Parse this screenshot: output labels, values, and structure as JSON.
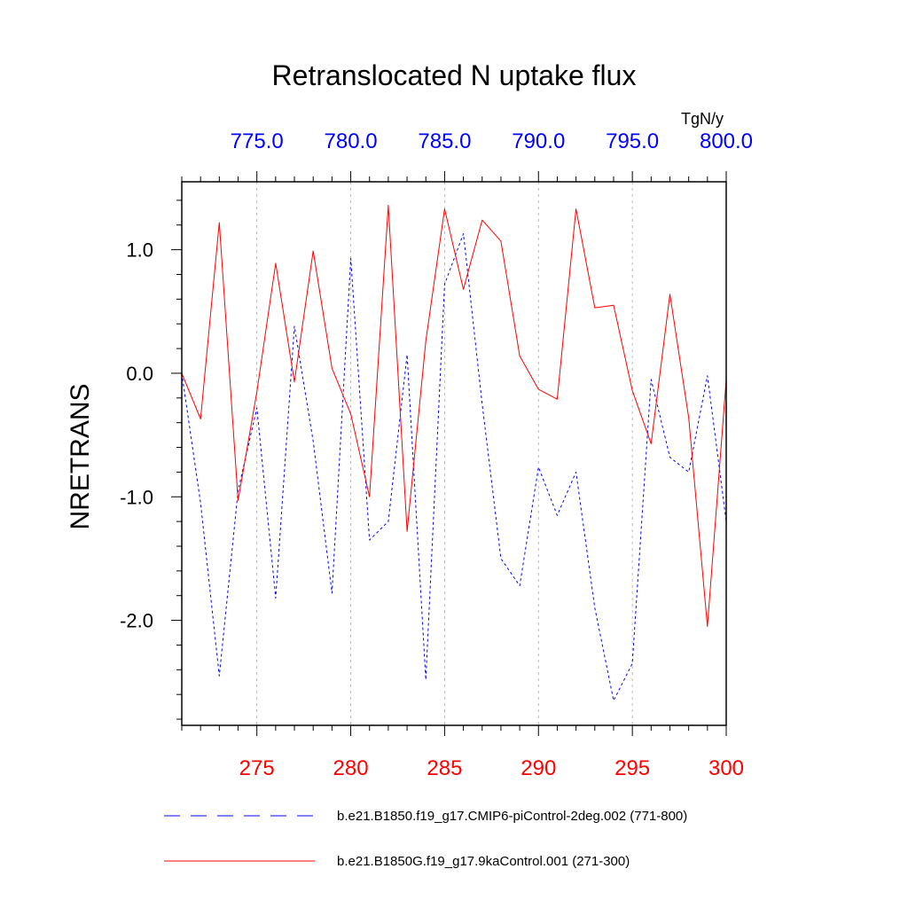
{
  "chart_data": {
    "type": "line",
    "title": "Retranslocated N uptake flux",
    "units": "TgN/y",
    "ylabel": "NRETRANS",
    "xlabel": "",
    "ylim": [
      -2.85,
      1.55
    ],
    "yticks": [
      1.0,
      0.0,
      -1.0,
      -2.0
    ],
    "ytick_labels": [
      "1.0",
      "0.0",
      "-1.0",
      "-2.0"
    ],
    "bottom_axis": {
      "range": [
        271,
        300
      ],
      "ticks": [
        275,
        280,
        285,
        290,
        295,
        300
      ],
      "tick_labels": [
        "275",
        "280",
        "285",
        "290",
        "295",
        "300"
      ],
      "color": "#ff0000"
    },
    "top_axis": {
      "range": [
        771,
        800
      ],
      "ticks": [
        775,
        780,
        785,
        790,
        795,
        800
      ],
      "tick_labels": [
        "775.0",
        "780.0",
        "785.0",
        "790.0",
        "795.0",
        "800.0"
      ],
      "color": "#0000ff"
    },
    "grid": "vertical dashed at major ticks",
    "series": [
      {
        "name": "b.e21.B1850.f19_g17.CMIP6-piControl-2deg.002 (771-800)",
        "color": "#0000ff",
        "style": "dashed",
        "axis": "top",
        "x": [
          771,
          772,
          773,
          774,
          775,
          776,
          777,
          778,
          779,
          780,
          781,
          782,
          783,
          784,
          785,
          786,
          787,
          788,
          789,
          790,
          791,
          792,
          793,
          794,
          795,
          796,
          797,
          798,
          799,
          800
        ],
        "values": [
          0.0,
          -1.05,
          -2.45,
          -0.95,
          -0.28,
          -1.82,
          0.38,
          -0.55,
          -1.78,
          0.93,
          -1.35,
          -1.2,
          0.15,
          -2.48,
          0.72,
          1.13,
          -0.25,
          -1.5,
          -1.72,
          -0.76,
          -1.15,
          -0.8,
          -1.9,
          -2.65,
          -2.35,
          -0.05,
          -0.68,
          -0.8,
          -0.02,
          -1.2
        ]
      },
      {
        "name": "b.e21.B1850G.f19_g17.9kaControl.001 (271-300)",
        "color": "#ff0000",
        "style": "solid",
        "axis": "bottom",
        "x": [
          271,
          272,
          273,
          274,
          275,
          276,
          277,
          278,
          279,
          280,
          281,
          282,
          283,
          284,
          285,
          286,
          287,
          288,
          289,
          290,
          291,
          292,
          293,
          294,
          295,
          296,
          297,
          298,
          299,
          300
        ],
        "values": [
          0.0,
          -0.37,
          1.22,
          -1.03,
          -0.15,
          0.89,
          -0.07,
          0.99,
          0.04,
          -0.33,
          -1.0,
          1.36,
          -1.28,
          0.26,
          1.33,
          0.68,
          1.24,
          1.07,
          0.14,
          -0.13,
          -0.21,
          1.33,
          0.53,
          0.55,
          -0.14,
          -0.57,
          0.64,
          -0.36,
          -2.05,
          -0.05
        ]
      }
    ],
    "legend_position": "bottom"
  }
}
